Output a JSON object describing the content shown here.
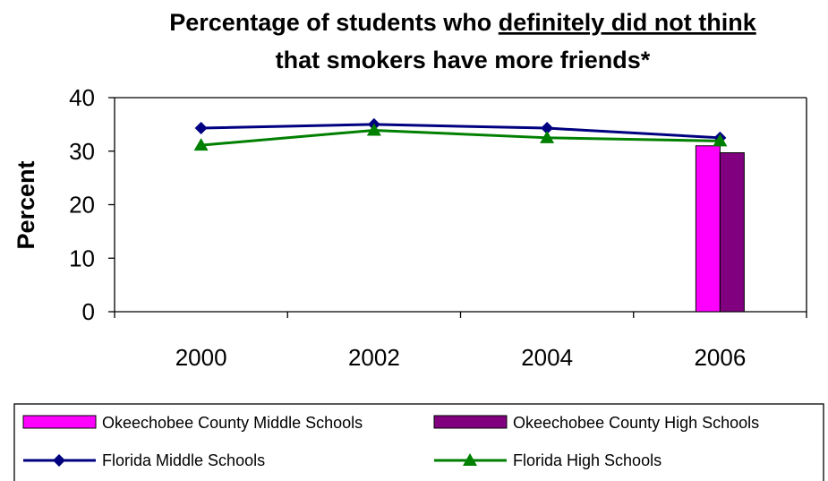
{
  "chart_data": {
    "type": "bar+line",
    "title_line1_prefix": "Percentage of students who ",
    "title_line1_underlined": "definitely did not think",
    "title_line2": "that smokers have more friends*",
    "ylabel": "Percent",
    "xlabel": "",
    "ylim": [
      0,
      40
    ],
    "yticks": [
      "0",
      "10",
      "20",
      "30",
      "40"
    ],
    "categories": [
      "2000",
      "2002",
      "2004",
      "2006"
    ],
    "bar_series": [
      {
        "name": "Okeechobee County Middle Schools",
        "color": "#ff00ff",
        "values": [
          null,
          null,
          null,
          31
        ]
      },
      {
        "name": "Okeechobee County High Schools",
        "color": "#800080",
        "values": [
          null,
          null,
          null,
          29.7
        ]
      }
    ],
    "line_series": [
      {
        "name": "Florida Middle Schools",
        "color": "#000080",
        "marker": "diamond",
        "values": [
          34.3,
          35.0,
          34.3,
          32.5
        ]
      },
      {
        "name": "Florida High Schools",
        "color": "#008000",
        "marker": "triangle",
        "values": [
          31.1,
          33.9,
          32.5,
          31.9
        ]
      }
    ],
    "grid": false,
    "legend_position": "bottom"
  }
}
